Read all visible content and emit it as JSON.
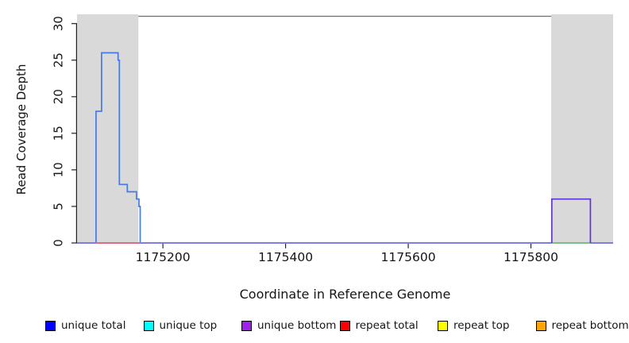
{
  "chart_data": {
    "type": "line",
    "subtype": "step-coverage-plot",
    "title": "",
    "xlabel": "Coordinate in Reference Genome",
    "ylabel": "Read Coverage Depth",
    "xlim": [
      1175060,
      1175934
    ],
    "ylim": [
      0,
      31
    ],
    "x_ticks": [
      1175200,
      1175400,
      1175600,
      1175800
    ],
    "y_ticks": [
      0,
      5,
      10,
      15,
      20,
      25,
      30
    ],
    "grid": false,
    "top_border_color": "#6e6e6e",
    "axis_color": "#222222",
    "shaded_regions": [
      {
        "from": 1175060,
        "to": 1175160,
        "color": "#d9d9d9"
      },
      {
        "from": 1175833,
        "to": 1175934,
        "color": "#d9d9d9"
      }
    ],
    "series": [
      {
        "name": "unique total",
        "color": "#4479e8",
        "points": [
          [
            1175060,
            0
          ],
          [
            1175091,
            0
          ],
          [
            1175091,
            18
          ],
          [
            1175100,
            18
          ],
          [
            1175100,
            26
          ],
          [
            1175127,
            26
          ],
          [
            1175127,
            25
          ],
          [
            1175129,
            25
          ],
          [
            1175129,
            8
          ],
          [
            1175142,
            8
          ],
          [
            1175142,
            7
          ],
          [
            1175157,
            7
          ],
          [
            1175157,
            6
          ],
          [
            1175161,
            6
          ],
          [
            1175161,
            5
          ],
          [
            1175163,
            5
          ],
          [
            1175163,
            0
          ],
          [
            1175934,
            0
          ]
        ]
      },
      {
        "name": "unique bottom baseline",
        "color": "#8878ec",
        "points": [
          [
            1175060,
            0
          ],
          [
            1175934,
            0
          ]
        ]
      },
      {
        "name": "repeat total",
        "color": "#e56a7a",
        "points": [
          [
            1175091,
            0
          ],
          [
            1175161,
            0
          ]
        ]
      },
      {
        "name": "top strand green segment",
        "color": "#79c979",
        "points": [
          [
            1175834,
            0
          ],
          [
            1175897,
            0
          ]
        ]
      },
      {
        "name": "unique bottom box",
        "color": "#5c33d6",
        "points": [
          [
            1175834,
            0
          ],
          [
            1175834,
            6
          ],
          [
            1175897,
            6
          ],
          [
            1175897,
            0
          ]
        ]
      }
    ],
    "legend": {
      "position": "bottom",
      "entries": [
        {
          "label": "unique total",
          "color": "#0000ff"
        },
        {
          "label": "unique top",
          "color": "#00ffff"
        },
        {
          "label": "unique bottom",
          "color": "#a020f0"
        },
        {
          "label": "repeat total",
          "color": "#ff0000"
        },
        {
          "label": "repeat top",
          "color": "#ffff00"
        },
        {
          "label": "repeat bottom",
          "color": "#ffa500"
        }
      ]
    }
  }
}
